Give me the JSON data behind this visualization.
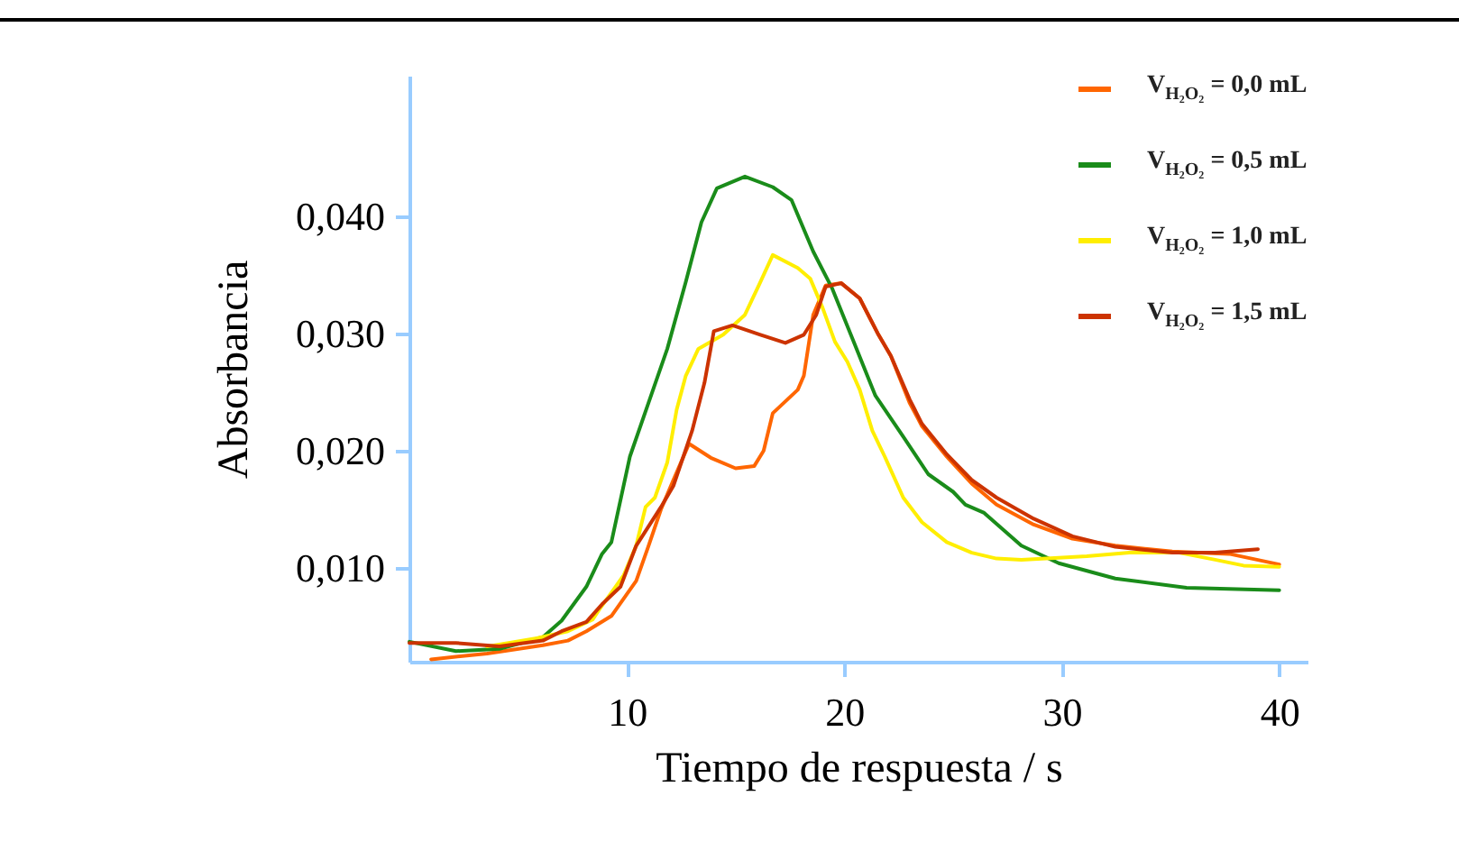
{
  "chart_data": {
    "type": "line",
    "xlabel": "Tiempo de respuesta / s",
    "ylabel": "Absorbancia",
    "xlim": [
      0,
      41.3
    ],
    "xticks": [
      10,
      20,
      30,
      40
    ],
    "ylim": [
      0.002,
      0.052
    ],
    "yticks": [
      {
        "value": 0.01,
        "label": "0,010"
      },
      {
        "value": 0.02,
        "label": "0,020"
      },
      {
        "value": 0.03,
        "label": "0,030"
      },
      {
        "value": 0.04,
        "label": "0,040"
      }
    ],
    "legend": "top right",
    "line_style": "solid",
    "marker": "none",
    "series": [
      {
        "name": "V$_{H₂O₂}$ = 0,0 mL",
        "color": "#ff6600",
        "x": [
          1.0,
          3.57,
          6.14,
          7.29,
          8.14,
          9.29,
          9.86,
          10.43,
          11.0,
          11.57,
          12.14,
          12.86,
          13.86,
          15.0,
          15.86,
          16.29,
          16.71,
          17.86,
          18.14,
          18.57,
          19.14,
          19.86,
          20.71,
          21.57,
          22.14,
          23.0,
          23.57,
          24.71,
          25.86,
          27.0,
          28.71,
          30.49,
          32.46,
          35.08,
          37.7,
          40
        ],
        "values": [
          0.0022,
          0.0027,
          0.0034,
          0.0038,
          0.0046,
          0.0059,
          0.0074,
          0.0089,
          0.0119,
          0.015,
          0.0175,
          0.0206,
          0.0194,
          0.0185,
          0.0187,
          0.02,
          0.0232,
          0.0252,
          0.0264,
          0.0316,
          0.0341,
          0.0343,
          0.033,
          0.0299,
          0.0281,
          0.0241,
          0.0221,
          0.0195,
          0.0172,
          0.0154,
          0.0137,
          0.0125,
          0.0119,
          0.0114,
          0.0112,
          0.0103
        ]
      },
      {
        "name": "V$_{H₂O₂}$ = 0,5 mL",
        "color": "#1a8c1a",
        "x": [
          0,
          2.14,
          4.14,
          6.14,
          7.0,
          8.14,
          8.86,
          9.29,
          10.14,
          11.0,
          11.86,
          12.71,
          13.43,
          14.14,
          15.43,
          16.71,
          17.57,
          18.57,
          19.43,
          20.43,
          21.43,
          22.71,
          23.86,
          25.0,
          25.57,
          26.43,
          28.14,
          29.86,
          32.46,
          35.74,
          40
        ],
        "values": [
          0.0037,
          0.0029,
          0.0031,
          0.0041,
          0.0055,
          0.0084,
          0.0112,
          0.0122,
          0.0195,
          0.0241,
          0.0287,
          0.0344,
          0.0395,
          0.0424,
          0.0434,
          0.0425,
          0.0414,
          0.037,
          0.0339,
          0.0293,
          0.0247,
          0.0212,
          0.018,
          0.0165,
          0.0154,
          0.0147,
          0.0119,
          0.0104,
          0.0091,
          0.0083,
          0.0081
        ]
      },
      {
        "name": "V$_{H₂O₂}$ = 1,0 mL",
        "color": "#ffee00",
        "x": [
          3.57,
          5.86,
          7.29,
          8.43,
          8.71,
          9.29,
          9.86,
          10.43,
          10.86,
          11.29,
          11.86,
          12.29,
          12.71,
          13.29,
          14.43,
          15.43,
          16.14,
          16.71,
          17.86,
          18.43,
          19.0,
          19.57,
          20.14,
          20.71,
          21.29,
          21.86,
          22.71,
          23.57,
          24.71,
          25.86,
          27.0,
          28.14,
          29.29,
          31.15,
          33.11,
          35.41,
          37.05,
          38.36,
          40
        ],
        "values": [
          0.0033,
          0.004,
          0.0046,
          0.0056,
          0.0064,
          0.0079,
          0.0094,
          0.0119,
          0.0152,
          0.016,
          0.019,
          0.0235,
          0.0264,
          0.0287,
          0.0299,
          0.0316,
          0.0344,
          0.0367,
          0.0356,
          0.0347,
          0.0322,
          0.0293,
          0.0276,
          0.0252,
          0.0217,
          0.0195,
          0.016,
          0.0139,
          0.0122,
          0.0113,
          0.0108,
          0.0107,
          0.0108,
          0.011,
          0.0113,
          0.0113,
          0.0107,
          0.0102,
          0.0101
        ]
      },
      {
        "name": "V$_{H₂O₂}$ = 1,5 mL",
        "color": "#cc3300",
        "x": [
          0,
          2.14,
          4.14,
          6.14,
          7.0,
          8.14,
          8.86,
          9.71,
          10.43,
          11.57,
          12.14,
          13.0,
          13.57,
          14.0,
          14.86,
          16.14,
          17.29,
          18.14,
          18.71,
          19.14,
          19.86,
          20.71,
          21.57,
          22.14,
          23.0,
          23.57,
          24.71,
          25.86,
          27.0,
          28.71,
          30.49,
          32.46,
          35.08,
          37.05,
          39.02
        ],
        "values": [
          0.0036,
          0.0036,
          0.0033,
          0.0038,
          0.0046,
          0.0054,
          0.0069,
          0.0084,
          0.0119,
          0.0152,
          0.017,
          0.0217,
          0.0258,
          0.0302,
          0.0307,
          0.0299,
          0.0292,
          0.0299,
          0.0316,
          0.034,
          0.0343,
          0.033,
          0.0299,
          0.0281,
          0.0244,
          0.0223,
          0.0197,
          0.0175,
          0.016,
          0.0142,
          0.0127,
          0.0118,
          0.0113,
          0.0113,
          0.0116
        ]
      }
    ]
  }
}
